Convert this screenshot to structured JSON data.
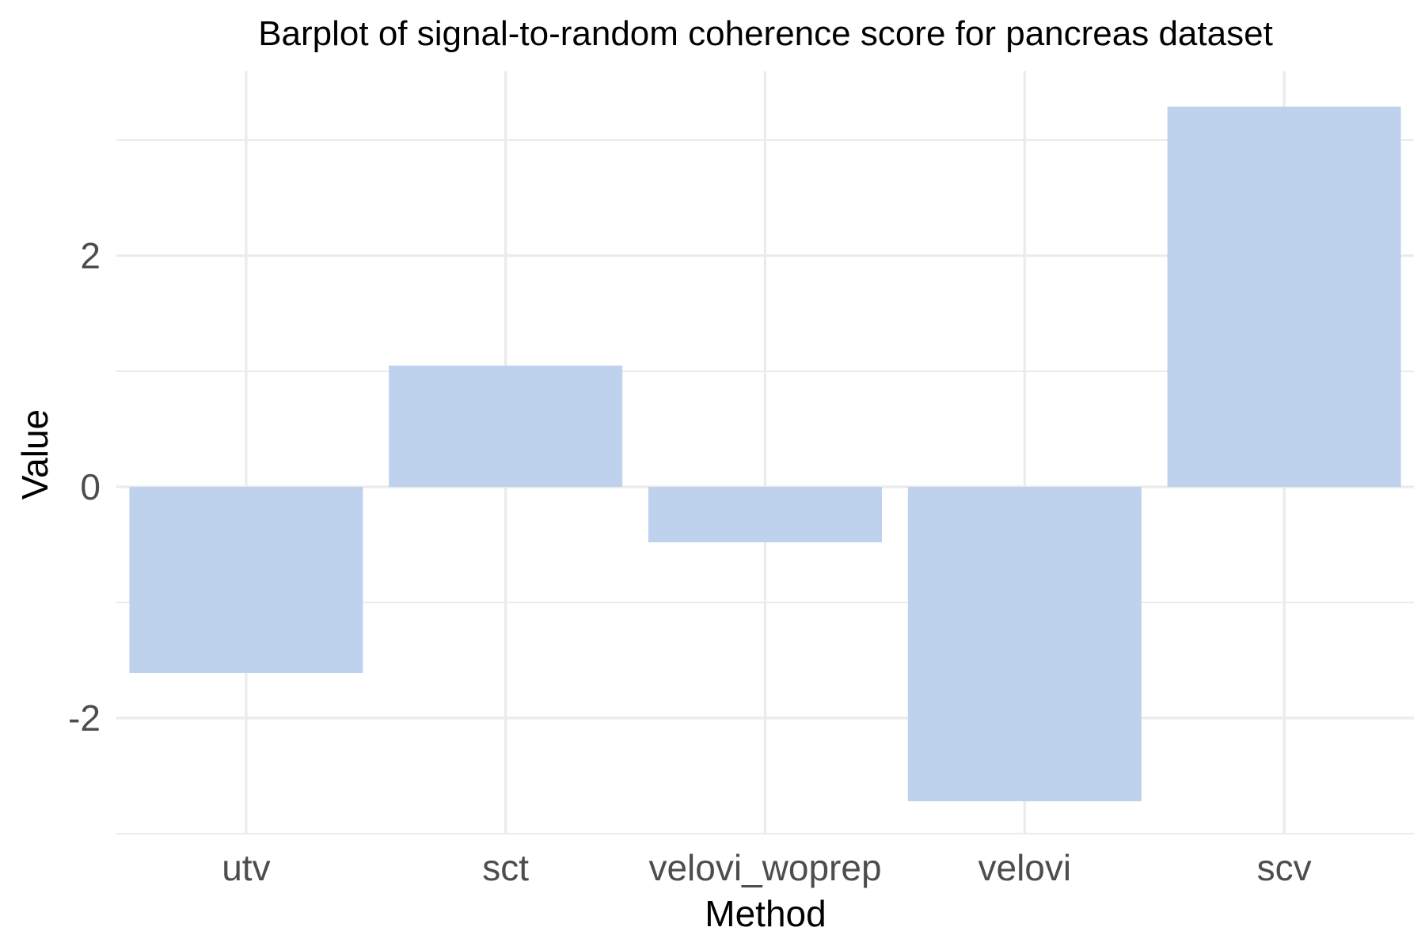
{
  "chart_data": {
    "type": "bar",
    "title": "Barplot of signal-to-random coherence score for pancreas dataset",
    "xlabel": "Method",
    "ylabel": "Value",
    "categories": [
      "utv",
      "sct",
      "velovi_woprep",
      "velovi",
      "scv"
    ],
    "values": [
      -1.61,
      1.05,
      -0.48,
      -2.72,
      3.29
    ],
    "ylim": [
      -3.0,
      3.0
    ],
    "yticks": [
      -2,
      0,
      2
    ],
    "ytick_labels": [
      "-2",
      "0",
      "2"
    ],
    "grid": true,
    "legend": "none",
    "bar_color": "#bed2ee",
    "grid_color": "#ebebeb"
  }
}
